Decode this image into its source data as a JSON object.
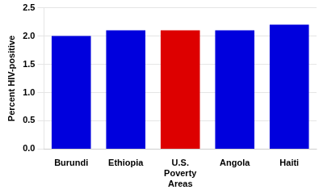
{
  "chart_data": {
    "type": "bar",
    "categories": [
      "Burundi",
      "Ethiopia",
      "U.S.\nPoverty\nAreas",
      "Angola",
      "Haiti"
    ],
    "values": [
      2.0,
      2.1,
      2.1,
      2.1,
      2.2
    ],
    "colors": [
      "#0000dd",
      "#0000dd",
      "#dd0000",
      "#0000dd",
      "#0000dd"
    ],
    "y_label": "Percent HIV-positive",
    "ylim": [
      0,
      2.5
    ],
    "yticks": [
      {
        "value": 0.0,
        "label": "0.0"
      },
      0.5,
      {
        "value": 1.0,
        "label": "1.0"
      },
      1.5,
      {
        "value": 2.0,
        "label": "2.0"
      },
      2.5
    ],
    "grid": true
  }
}
